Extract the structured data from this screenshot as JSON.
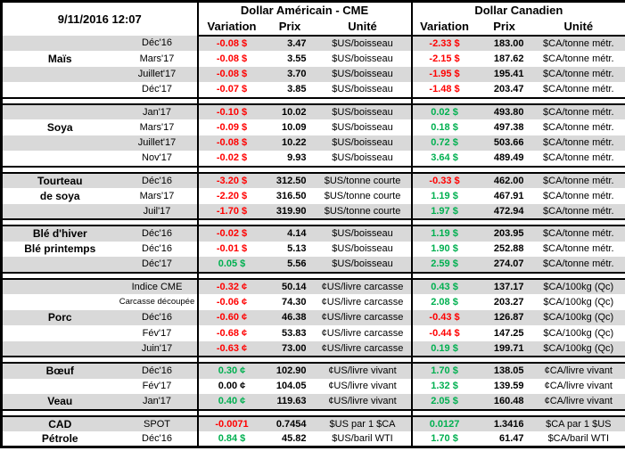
{
  "meta": {
    "timestamp": "9/11/2016 12:07"
  },
  "header": {
    "usd_title": "Dollar Américain - CME",
    "cad_title": "Dollar Canadien",
    "columns": {
      "variation": "Variation",
      "prix": "Prix",
      "unite": "Unité"
    }
  },
  "colors": {
    "negative": "#FF0000",
    "positive": "#00B050",
    "zero": "#000000",
    "row_shade": "#D9D9D9",
    "border": "#000000"
  },
  "sections": [
    {
      "name": "mais",
      "rows": [
        {
          "label": "",
          "month": "Déc'16",
          "us_var": "-0.08 $",
          "us_prix": "3.47",
          "us_unit": "$US/boisseau",
          "ca_var": "-2.33 $",
          "ca_prix": "183.00",
          "ca_unit": "$CA/tonne métr."
        },
        {
          "label": "Maïs",
          "month": "Mars'17",
          "us_var": "-0.08 $",
          "us_prix": "3.55",
          "us_unit": "$US/boisseau",
          "ca_var": "-2.15 $",
          "ca_prix": "187.62",
          "ca_unit": "$CA/tonne métr."
        },
        {
          "label": "",
          "month": "Juillet'17",
          "us_var": "-0.08 $",
          "us_prix": "3.70",
          "us_unit": "$US/boisseau",
          "ca_var": "-1.95 $",
          "ca_prix": "195.41",
          "ca_unit": "$CA/tonne métr."
        },
        {
          "label": "",
          "month": "Déc'17",
          "us_var": "-0.07 $",
          "us_prix": "3.85",
          "us_unit": "$US/boisseau",
          "ca_var": "-1.48 $",
          "ca_prix": "203.47",
          "ca_unit": "$CA/tonne métr."
        }
      ]
    },
    {
      "name": "soya",
      "rows": [
        {
          "label": "",
          "month": "Jan'17",
          "us_var": "-0.10 $",
          "us_prix": "10.02",
          "us_unit": "$US/boisseau",
          "ca_var": "0.02 $",
          "ca_prix": "493.80",
          "ca_unit": "$CA/tonne métr."
        },
        {
          "label": "Soya",
          "month": "Mars'17",
          "us_var": "-0.09 $",
          "us_prix": "10.09",
          "us_unit": "$US/boisseau",
          "ca_var": "0.18 $",
          "ca_prix": "497.38",
          "ca_unit": "$CA/tonne métr."
        },
        {
          "label": "",
          "month": "Juillet'17",
          "us_var": "-0.08 $",
          "us_prix": "10.22",
          "us_unit": "$US/boisseau",
          "ca_var": "0.72 $",
          "ca_prix": "503.66",
          "ca_unit": "$CA/tonne métr."
        },
        {
          "label": "",
          "month": "Nov'17",
          "us_var": "-0.02 $",
          "us_prix": "9.93",
          "us_unit": "$US/boisseau",
          "ca_var": "3.64 $",
          "ca_prix": "489.49",
          "ca_unit": "$CA/tonne métr."
        }
      ]
    },
    {
      "name": "tourteau-de-soya",
      "rows": [
        {
          "label": "Tourteau",
          "month": "Déc'16",
          "us_var": "-3.20 $",
          "us_prix": "312.50",
          "us_unit": "$US/tonne courte",
          "ca_var": "-0.33 $",
          "ca_prix": "462.00",
          "ca_unit": "$CA/tonne métr."
        },
        {
          "label": "de soya",
          "month": "Mars'17",
          "us_var": "-2.20 $",
          "us_prix": "316.50",
          "us_unit": "$US/tonne courte",
          "ca_var": "1.19 $",
          "ca_prix": "467.91",
          "ca_unit": "$CA/tonne métr."
        },
        {
          "label": "",
          "month": "Juil'17",
          "us_var": "-1.70 $",
          "us_prix": "319.90",
          "us_unit": "$US/tonne courte",
          "ca_var": "1.97 $",
          "ca_prix": "472.94",
          "ca_unit": "$CA/tonne métr."
        }
      ]
    },
    {
      "name": "ble",
      "rows": [
        {
          "label": "Blé d'hiver",
          "month": "Déc'16",
          "us_var": "-0.02 $",
          "us_prix": "4.14",
          "us_unit": "$US/boisseau",
          "ca_var": "1.19 $",
          "ca_prix": "203.95",
          "ca_unit": "$CA/tonne métr."
        },
        {
          "label": "Blé printemps",
          "month": "Déc'16",
          "us_var": "-0.01 $",
          "us_prix": "5.13",
          "us_unit": "$US/boisseau",
          "ca_var": "1.90 $",
          "ca_prix": "252.88",
          "ca_unit": "$CA/tonne métr."
        },
        {
          "label": "",
          "month": "Déc'17",
          "us_var": "0.05 $",
          "us_prix": "5.56",
          "us_unit": "$US/boisseau",
          "ca_var": "2.59 $",
          "ca_prix": "274.07",
          "ca_unit": "$CA/tonne métr."
        }
      ]
    },
    {
      "name": "porc",
      "rows": [
        {
          "label": "",
          "month": "Indice CME",
          "us_var": "-0.32 ¢",
          "us_prix": "50.14",
          "us_unit": "¢US/livre carcasse",
          "ca_var": "0.43 $",
          "ca_prix": "137.17",
          "ca_unit": "$CA/100kg (Qc)"
        },
        {
          "label": "",
          "month": "Carcasse découpée",
          "us_var": "-0.06 ¢",
          "us_prix": "74.30",
          "us_unit": "¢US/livre carcasse",
          "ca_var": "2.08 $",
          "ca_prix": "203.27",
          "ca_unit": "$CA/100kg (Qc)"
        },
        {
          "label": "Porc",
          "month": "Déc'16",
          "us_var": "-0.60 ¢",
          "us_prix": "46.38",
          "us_unit": "¢US/livre carcasse",
          "ca_var": "-0.43 $",
          "ca_prix": "126.87",
          "ca_unit": "$CA/100kg (Qc)"
        },
        {
          "label": "",
          "month": "Fév'17",
          "us_var": "-0.68 ¢",
          "us_prix": "53.83",
          "us_unit": "¢US/livre carcasse",
          "ca_var": "-0.44 $",
          "ca_prix": "147.25",
          "ca_unit": "$CA/100kg (Qc)"
        },
        {
          "label": "",
          "month": "Juin'17",
          "us_var": "-0.63 ¢",
          "us_prix": "73.00",
          "us_unit": "¢US/livre carcasse",
          "ca_var": "0.19 $",
          "ca_prix": "199.71",
          "ca_unit": "$CA/100kg (Qc)"
        }
      ]
    },
    {
      "name": "boeuf-veau",
      "rows": [
        {
          "label": "Bœuf",
          "month": "Déc'16",
          "us_var": "0.30 ¢",
          "us_prix": "102.90",
          "us_unit": "¢US/livre vivant",
          "ca_var": "1.70 $",
          "ca_prix": "138.05",
          "ca_unit": "¢CA/livre vivant"
        },
        {
          "label": "",
          "month": "Fév'17",
          "us_var": "0.00 ¢",
          "us_prix": "104.05",
          "us_unit": "¢US/livre vivant",
          "ca_var": "1.32 $",
          "ca_prix": "139.59",
          "ca_unit": "¢CA/livre vivant"
        },
        {
          "label": "Veau",
          "month": "Jan'17",
          "us_var": "0.40 ¢",
          "us_prix": "119.63",
          "us_unit": "¢US/livre vivant",
          "ca_var": "2.05 $",
          "ca_prix": "160.48",
          "ca_unit": "¢CA/livre vivant"
        }
      ]
    },
    {
      "name": "cad-petrole",
      "rows": [
        {
          "label": "CAD",
          "month": "SPOT",
          "us_var": "-0.0071",
          "us_prix": "0.7454",
          "us_unit": "$US par 1 $CA",
          "ca_var": "0.0127",
          "ca_prix": "1.3416",
          "ca_unit": "$CA par 1 $US"
        },
        {
          "label": "Pétrole",
          "month": "Déc'16",
          "us_var": "0.84 $",
          "us_prix": "45.82",
          "us_unit": "$US/baril WTI",
          "ca_var": "1.70 $",
          "ca_prix": "61.47",
          "ca_unit": "$CA/baril WTI"
        }
      ]
    }
  ]
}
